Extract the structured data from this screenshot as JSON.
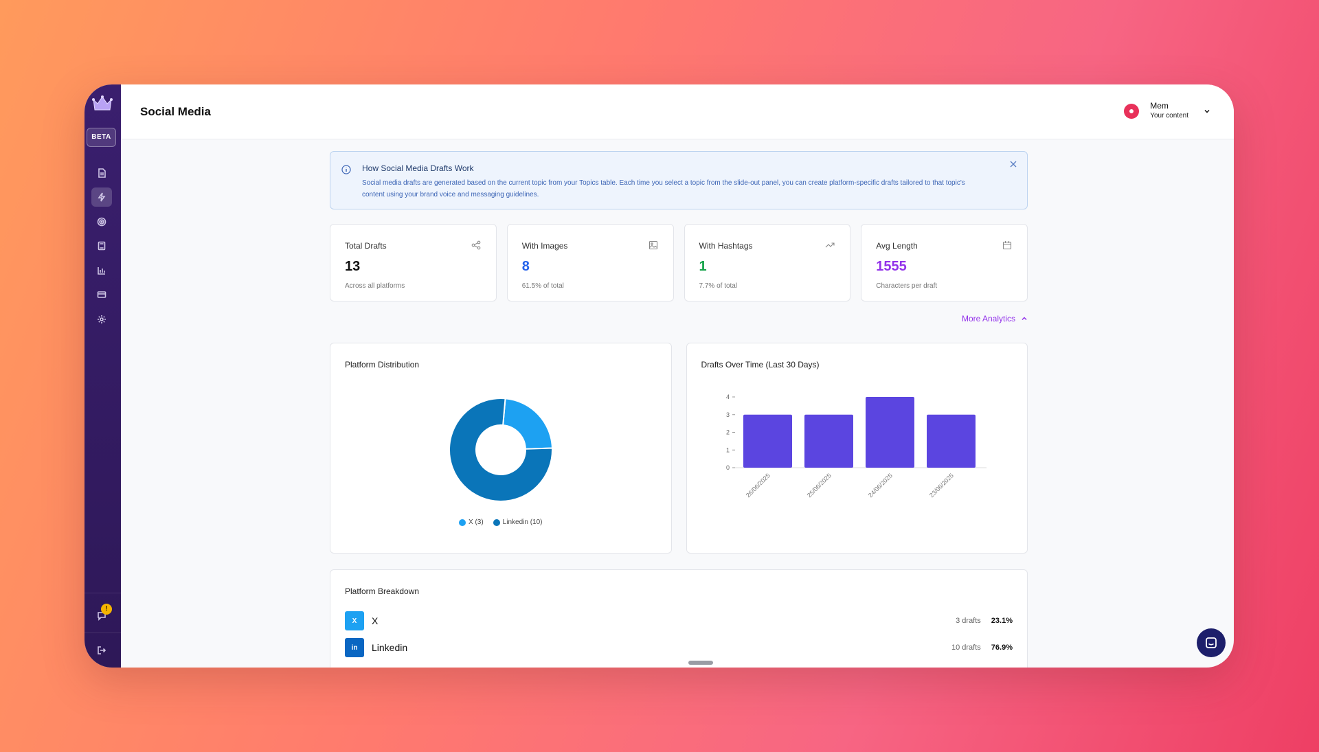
{
  "sidebar": {
    "beta_label": "BETA",
    "icons": [
      "document-icon",
      "lightning-icon",
      "target-icon",
      "book-icon",
      "chart-icon",
      "card-icon",
      "gear-icon"
    ],
    "notification_count": "!"
  },
  "header": {
    "title": "Social Media",
    "user_name": "Mem",
    "user_subtitle": "Your content"
  },
  "info_banner": {
    "title": "How Social Media Drafts Work",
    "body": "Social media drafts are generated based on the current topic from your Topics table. Each time you select a topic from the slide-out panel, you can create platform-specific drafts tailored to that topic's content using your brand voice and messaging guidelines."
  },
  "stats": [
    {
      "label": "Total Drafts",
      "value": "13",
      "sub": "Across all platforms",
      "color": "#111111",
      "icon": "share-icon"
    },
    {
      "label": "With Images",
      "value": "8",
      "sub": "61.5% of total",
      "color": "#2563eb",
      "icon": "image-icon"
    },
    {
      "label": "With Hashtags",
      "value": "1",
      "sub": "7.7% of total",
      "color": "#16a34a",
      "icon": "trending-icon"
    },
    {
      "label": "Avg Length",
      "value": "1555",
      "sub": "Characters per draft",
      "color": "#9333ea",
      "icon": "calendar-icon"
    }
  ],
  "more_analytics_label": "More Analytics",
  "platform_distribution": {
    "title": "Platform Distribution",
    "legend": [
      "X (3)",
      "Linkedin (10)"
    ]
  },
  "drafts_over_time": {
    "title": "Drafts Over Time (Last 30 Days)"
  },
  "chart_data": [
    {
      "type": "pie",
      "title": "Platform Distribution",
      "categories": [
        "X",
        "Linkedin"
      ],
      "values": [
        3,
        10
      ],
      "colors": [
        "#1da1f2",
        "#0a75b9"
      ],
      "legend": "bottom"
    },
    {
      "type": "bar",
      "title": "Drafts Over Time (Last 30 Days)",
      "categories": [
        "26/06/2025",
        "25/06/2025",
        "24/06/2025",
        "23/06/2025"
      ],
      "values": [
        3,
        3,
        4,
        3
      ],
      "yticks": [
        0,
        1,
        2,
        3,
        4
      ],
      "ylim": [
        0,
        4
      ],
      "color": "#5b45e0"
    }
  ],
  "breakdown": {
    "title": "Platform Breakdown",
    "rows": [
      {
        "badge": "X",
        "name": "X",
        "count": "3 drafts",
        "pct": "23.1%",
        "color": "#1da1f2"
      },
      {
        "badge": "in",
        "name": "Linkedin",
        "count": "10 drafts",
        "pct": "76.9%",
        "color": "#0a66c2"
      }
    ]
  }
}
